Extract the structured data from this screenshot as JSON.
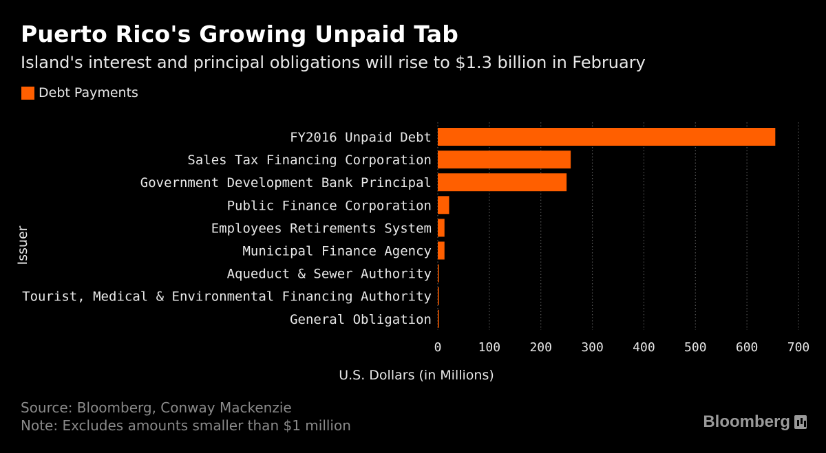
{
  "colors": {
    "background": "#000000",
    "bar": "#ff5f00",
    "grid": "#555555"
  },
  "chart_data": {
    "type": "bar",
    "orientation": "horizontal",
    "title": "Puerto Rico's Growing Unpaid Tab",
    "subtitle": "Island's interest and principal obligations will rise to $1.3 billion in February",
    "xlabel": "U.S. Dollars (in Millions)",
    "ylabel": "Issuer",
    "xlim": [
      0,
      700
    ],
    "xticks": [
      0,
      100,
      200,
      300,
      400,
      500,
      600,
      700
    ],
    "grid": "vertical dotted",
    "legend_position": "top-left",
    "categories": [
      "FY2016 Unpaid Debt",
      "Sales Tax Financing Corporation",
      "Government Development Bank Principal",
      "Public Finance Corporation",
      "Employees Retirements System",
      "Municipal Finance Agency",
      "Aqueduct & Sewer Authority",
      "Tourist, Medical & Environmental Financing Authority",
      "General Obligation"
    ],
    "series": [
      {
        "name": "Debt Payments",
        "color": "#ff5f00",
        "values": [
          655,
          258,
          250,
          22,
          13,
          13,
          2,
          1.5,
          1
        ]
      }
    ]
  },
  "footer": {
    "source": "Source: Bloomberg, Conway Mackenzie",
    "note": "Note: Excludes amounts smaller than $1 million"
  },
  "brand": {
    "name": "Bloomberg",
    "icon": "bloomberg-logo-icon"
  }
}
